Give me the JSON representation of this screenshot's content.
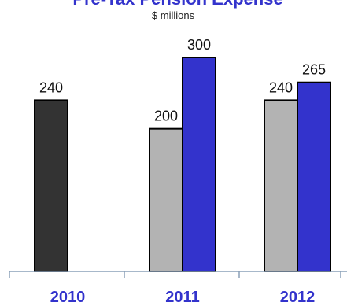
{
  "chart_data": {
    "type": "bar",
    "title": "Pre-Tax Pension Expense",
    "subtitle": "$ millions",
    "categories": [
      "2010",
      "2011",
      "2012"
    ],
    "bars": [
      {
        "category": "2010",
        "value": 240,
        "color": "#333333"
      },
      {
        "category": "2011",
        "value": 200,
        "color": "#b3b3b3"
      },
      {
        "category": "2011",
        "value": 300,
        "color": "#3333cc"
      },
      {
        "category": "2012",
        "value": 240,
        "color": "#b3b3b3"
      },
      {
        "category": "2012",
        "value": 265,
        "color": "#3333cc"
      }
    ],
    "ylim": [
      0,
      300
    ],
    "xlabel": "",
    "ylabel": "",
    "grid": false,
    "colors": {
      "title": "#3333cc",
      "category_labels": "#3333cc",
      "axis": "#8aa0b8"
    }
  }
}
